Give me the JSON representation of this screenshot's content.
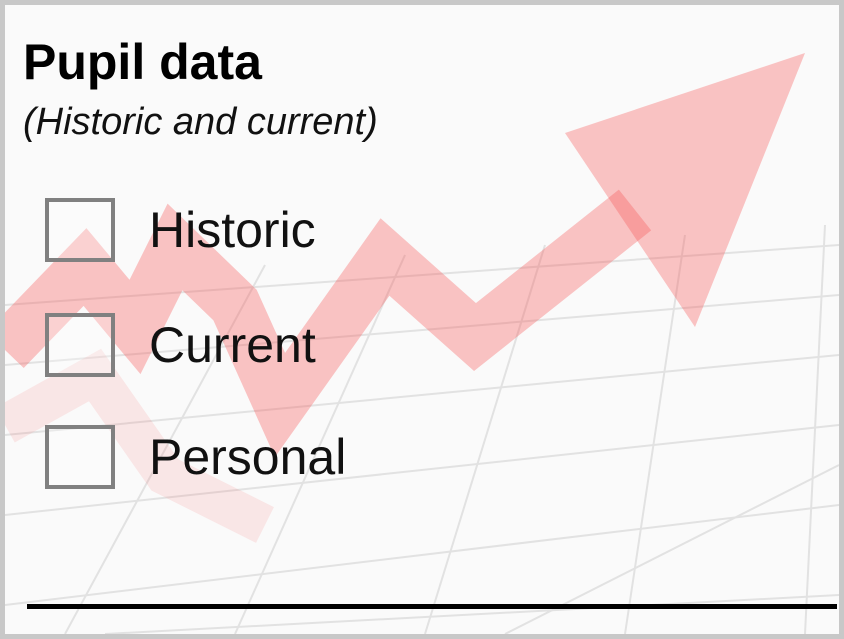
{
  "header": {
    "title": "Pupil data",
    "subtitle": "(Historic and current)"
  },
  "options": [
    {
      "label": "Historic"
    },
    {
      "label": "Current"
    },
    {
      "label": "Personal"
    }
  ]
}
